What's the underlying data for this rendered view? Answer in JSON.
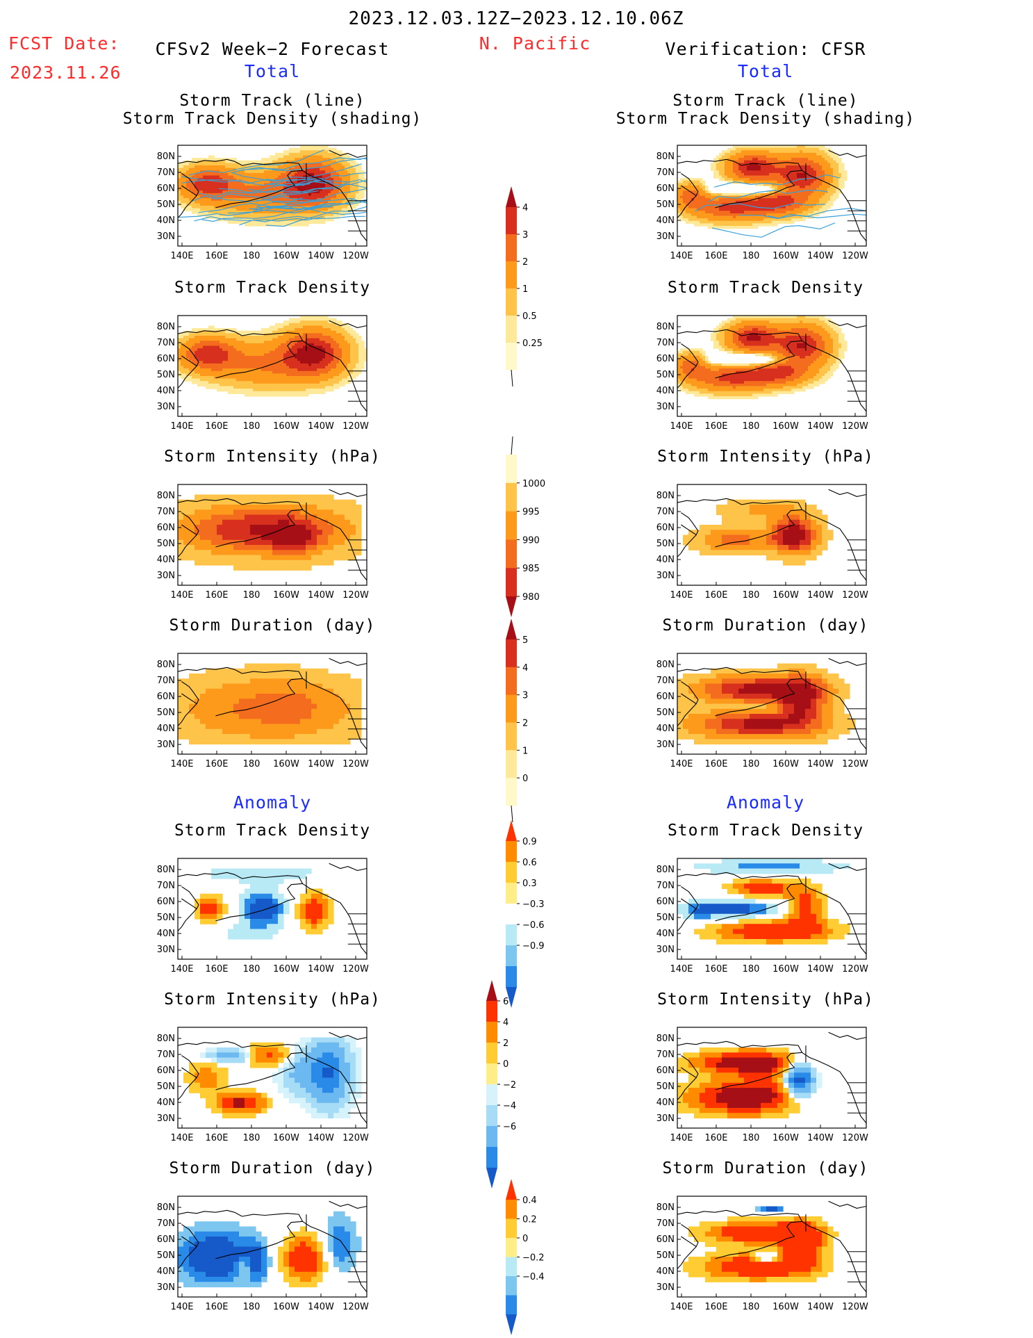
{
  "header": {
    "period": "2023.12.03.12Z−2023.12.10.06Z",
    "fcst_label": "FCST Date:",
    "fcst_date": "2023.11.26",
    "region": "N. Pacific",
    "left_title": "CFSv2 Week−2 Forecast",
    "right_title": "Verification: CFSR",
    "total_label": "Total",
    "anomaly_label": "Anomaly"
  },
  "chart_data": {
    "type": "heatmap",
    "x_ticks": [
      "140E",
      "160E",
      "180",
      "160W",
      "140W",
      "120W"
    ],
    "y_ticks": [
      "80N",
      "70N",
      "60N",
      "50N",
      "40N",
      "30N"
    ],
    "panels_left": [
      {
        "id": "L1",
        "title": [
          "Storm Track (line)",
          "Storm Track Density (shading)"
        ],
        "var": "dens",
        "tracks": true
      },
      {
        "id": "L2",
        "title": [
          "Storm Track Density"
        ],
        "var": "dens"
      },
      {
        "id": "L3",
        "title": [
          "Storm Intensity (hPa)"
        ],
        "var": "int"
      },
      {
        "id": "L4",
        "title": [
          "Storm Duration (day)"
        ],
        "var": "dur"
      },
      {
        "id": "L5",
        "title": [
          "Storm Track Density"
        ],
        "var": "adens"
      },
      {
        "id": "L6",
        "title": [
          "Storm Intensity (hPa)"
        ],
        "var": "aint"
      },
      {
        "id": "L7",
        "title": [
          "Storm Duration (day)"
        ],
        "var": "adur"
      }
    ],
    "panels_right": [
      {
        "id": "R1",
        "title": [
          "Storm Track (line)",
          "Storm Track Density (shading)"
        ],
        "var": "dens",
        "tracks": true
      },
      {
        "id": "R2",
        "title": [
          "Storm Track Density"
        ],
        "var": "dens"
      },
      {
        "id": "R3",
        "title": [
          "Storm Intensity (hPa)"
        ],
        "var": "int"
      },
      {
        "id": "R4",
        "title": [
          "Storm Duration (day)"
        ],
        "var": "dur"
      },
      {
        "id": "R5",
        "title": [
          "Storm Track Density"
        ],
        "var": "adens"
      },
      {
        "id": "R6",
        "title": [
          "Storm Intensity (hPa)"
        ],
        "var": "aint"
      },
      {
        "id": "R7",
        "title": [
          "Storm Duration (day)"
        ],
        "var": "adur"
      }
    ],
    "colorbars": [
      {
        "id": "cb-density",
        "labels": [
          "4",
          "3",
          "2",
          "1",
          "0.5",
          "0.25"
        ],
        "colors": [
          "#a50f15",
          "#d7301f",
          "#f46d1e",
          "#fd9a1c",
          "#fdc449",
          "#fee99a",
          "#fff8c9"
        ],
        "arrow_top": true,
        "arrow_bottom": "line"
      },
      {
        "id": "cb-intensity",
        "labels": [
          "1000",
          "995",
          "990",
          "985",
          "980"
        ],
        "colors": [
          "#fff8c9",
          "#fdc449",
          "#fd9a1c",
          "#f46d1e",
          "#d7301f",
          "#a50f15"
        ],
        "arrow_top": "line",
        "arrow_bottom": true
      },
      {
        "id": "cb-duration",
        "labels": [
          "5",
          "4",
          "3",
          "2",
          "1",
          "0"
        ],
        "colors": [
          "#a50f15",
          "#d7301f",
          "#f46d1e",
          "#fd9a1c",
          "#fdc449",
          "#fee99a",
          "#fff8c9"
        ],
        "arrow_top": true,
        "arrow_bottom": "line"
      },
      {
        "id": "cb-anom-density",
        "labels": [
          "0.9",
          "0.6",
          "0.3",
          "−0.3",
          "−0.6",
          "−0.9"
        ],
        "colors": [
          "#ff3300",
          "#ff8c00",
          "#ffcc33",
          "#ffee88",
          "#ffffff",
          "#b8eaf6",
          "#7cc6f0",
          "#2a8ae8",
          "#1659c9"
        ],
        "arrow_top": true,
        "arrow_bottom": true
      },
      {
        "id": "cb-anom-intensity",
        "labels": [
          "6",
          "4",
          "2",
          "0",
          "−2",
          "−4",
          "−6"
        ],
        "colors": [
          "#a50f15",
          "#ff3300",
          "#ff8c00",
          "#ffcc33",
          "#ffee88",
          "#d6f2fa",
          "#a6dcf6",
          "#6cb8f0",
          "#2a8ae8",
          "#1659c9"
        ],
        "arrow_top": true,
        "arrow_bottom": true
      },
      {
        "id": "cb-anom-duration",
        "labels": [
          "0.4",
          "0.2",
          "0",
          "−0.2",
          "−0.4"
        ],
        "colors": [
          "#ff3300",
          "#ff8c00",
          "#ffcc33",
          "#ffee88",
          "#b8eaf6",
          "#7cc6f0",
          "#2a8ae8",
          "#1659c9"
        ],
        "arrow_top": true,
        "arrow_bottom": true
      }
    ]
  }
}
